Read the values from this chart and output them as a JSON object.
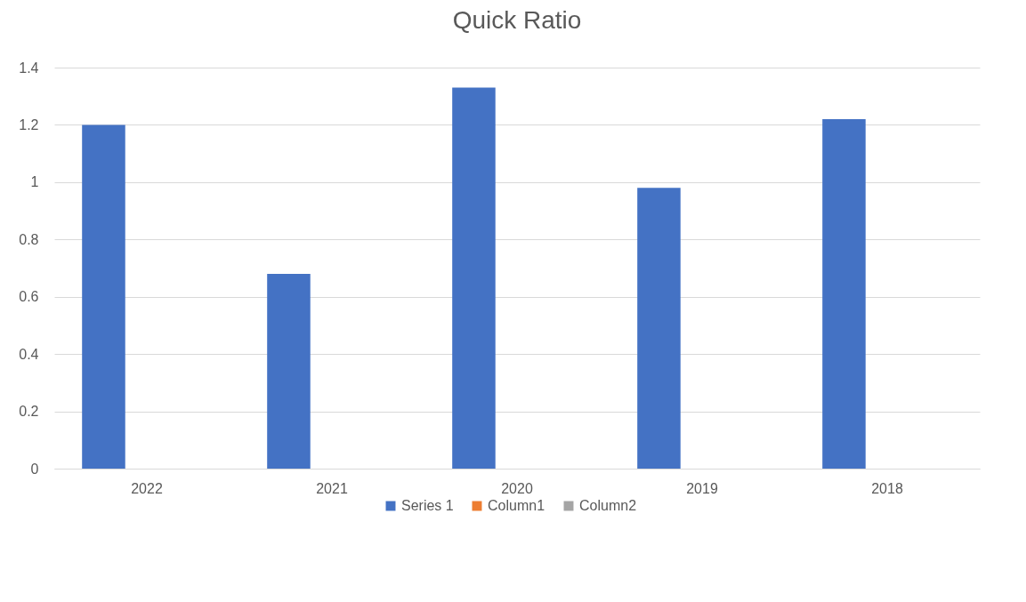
{
  "chart_data": {
    "type": "bar",
    "title": "Quick Ratio",
    "categories": [
      "2022",
      "2021",
      "2020",
      "2019",
      "2018"
    ],
    "series": [
      {
        "name": "Series 1",
        "color": "#4472c4",
        "values": [
          1.2,
          0.68,
          1.33,
          0.98,
          1.22
        ]
      },
      {
        "name": "Column1",
        "color": "#ed7d31",
        "values": [
          null,
          null,
          null,
          null,
          null
        ]
      },
      {
        "name": "Column2",
        "color": "#a5a5a5",
        "values": [
          null,
          null,
          null,
          null,
          null
        ]
      }
    ],
    "ylim": [
      0,
      1.4
    ],
    "yticks": [
      0,
      0.2,
      0.4,
      0.6,
      0.8,
      1,
      1.2,
      1.4
    ],
    "grid": "y",
    "legend": "bottom"
  }
}
